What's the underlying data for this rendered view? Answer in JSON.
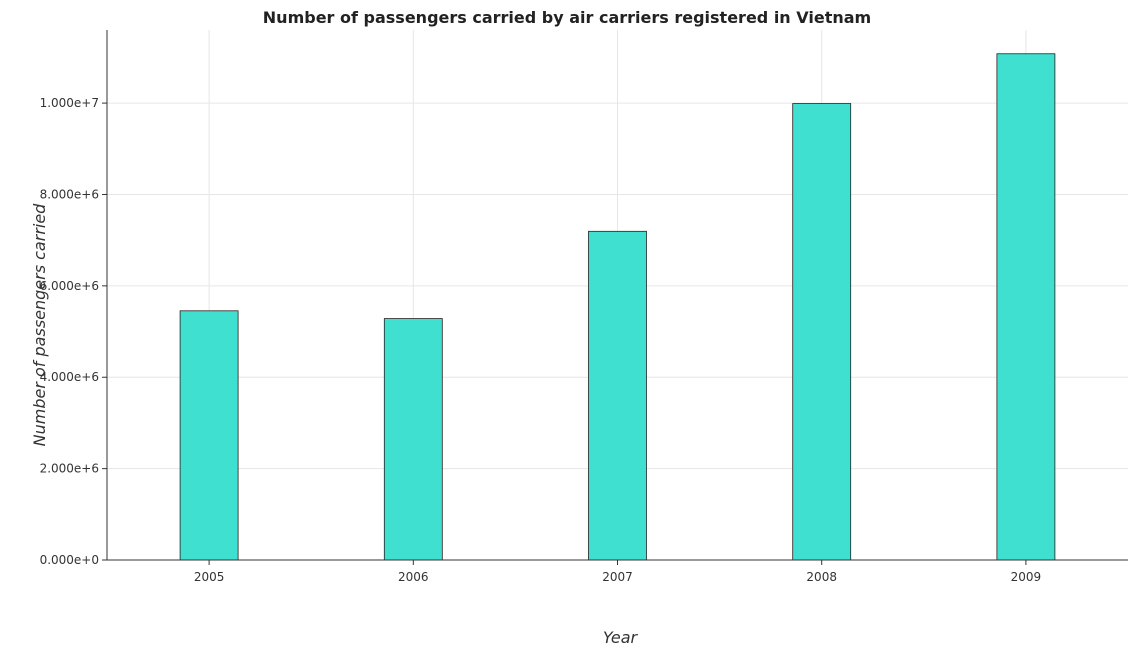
{
  "chart_data": {
    "type": "bar",
    "title": "Number of passengers carried by air carriers registered in Vietnam",
    "xlabel": "Year",
    "ylabel": "Number of passengers carried",
    "categories": [
      "2005",
      "2006",
      "2007",
      "2008",
      "2009"
    ],
    "values": [
      5454000,
      5284000,
      7194000,
      9990000,
      11080000
    ],
    "ylim": [
      0,
      11600000
    ],
    "yticks": [
      0,
      2000000,
      4000000,
      6000000,
      8000000,
      10000000
    ],
    "ytick_labels": [
      "0.000e+0",
      "2.000e+6",
      "4.000e+6",
      "6.000e+6",
      "8.000e+6",
      "1.000e+7"
    ],
    "grid": true,
    "bar_color": "#40e0d0"
  }
}
